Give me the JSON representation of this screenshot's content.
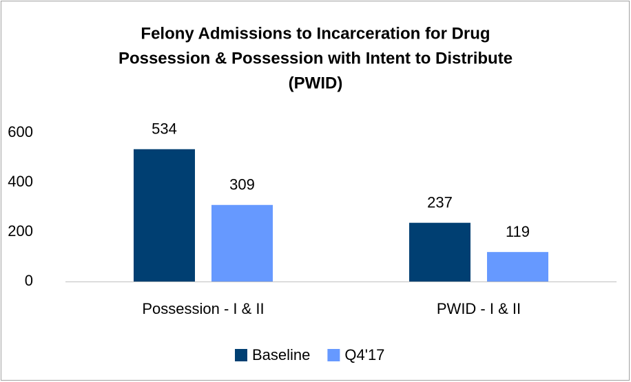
{
  "chart_data": {
    "type": "bar",
    "title": [
      "Felony Admissions to Incarceration for Drug",
      "Possession & Possession with Intent to Distribute",
      "(PWID)"
    ],
    "categories": [
      "Possession - I & II",
      "PWID - I & II"
    ],
    "series": [
      {
        "name": "Baseline",
        "color": "#003f72",
        "values": [
          534,
          237
        ]
      },
      {
        "name": "Q4'17",
        "color": "#6699ff",
        "values": [
          309,
          119
        ]
      }
    ],
    "ylim": [
      0,
      600
    ],
    "yticks": [
      0,
      200,
      400,
      600
    ],
    "grid": false,
    "legend": "bottom"
  }
}
